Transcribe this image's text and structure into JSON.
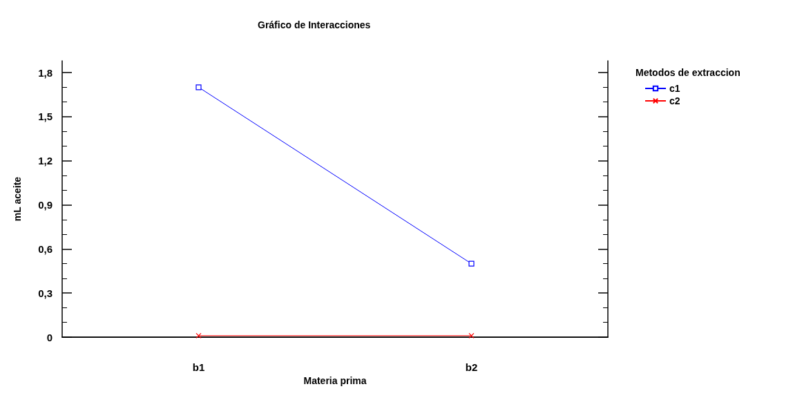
{
  "chart_data": {
    "type": "line",
    "title": "Gráfico de Interacciones",
    "xlabel": "Materia prima",
    "ylabel": "mL aceite",
    "legend_title": "Metodos de extraccion",
    "categories": [
      "b1",
      "b2"
    ],
    "series": [
      {
        "name": "c1",
        "color": "#0000ff",
        "marker": "square",
        "values": [
          1.7,
          0.5
        ]
      },
      {
        "name": "c2",
        "color": "#ff0000",
        "marker": "cross",
        "values": [
          0.01,
          0.01
        ]
      }
    ],
    "ylim": [
      0,
      1.88
    ],
    "yticks": [
      {
        "value": 0,
        "label": "0"
      },
      {
        "value": 0.3,
        "label": "0,3"
      },
      {
        "value": 0.6,
        "label": "0,6"
      },
      {
        "value": 0.9,
        "label": "0,9"
      },
      {
        "value": 1.2,
        "label": "1,2"
      },
      {
        "value": 1.5,
        "label": "1,5"
      },
      {
        "value": 1.8,
        "label": "1,8"
      }
    ],
    "grid": false,
    "legend": "top right"
  }
}
